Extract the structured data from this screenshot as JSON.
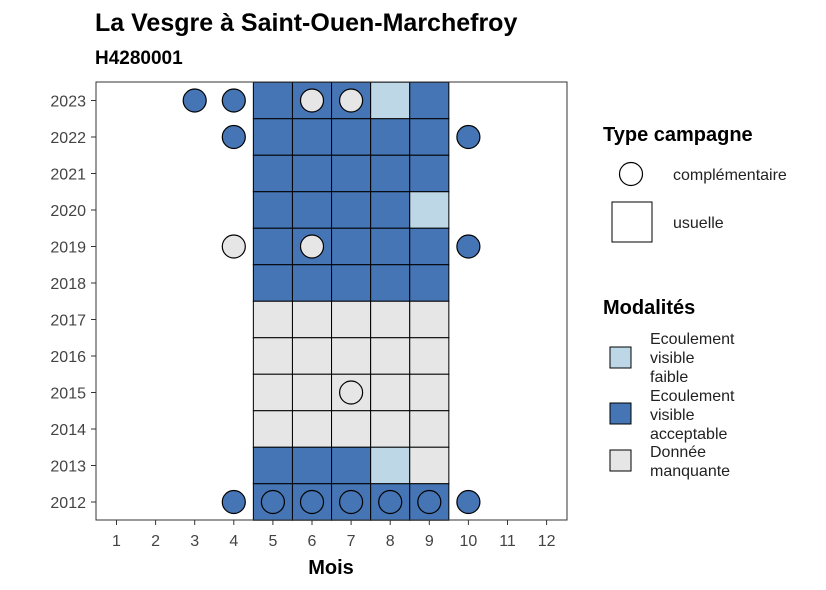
{
  "chart_data": {
    "type": "heatmap",
    "title": "La Vesgre à Saint-Ouen-Marchefroy",
    "subtitle": "H4280001",
    "xlabel": "Mois",
    "ylabel": "",
    "x_ticks": [
      "1",
      "2",
      "3",
      "4",
      "5",
      "6",
      "7",
      "8",
      "9",
      "10",
      "11",
      "12"
    ],
    "y_ticks": [
      "2012",
      "2013",
      "2014",
      "2015",
      "2016",
      "2017",
      "2018",
      "2019",
      "2020",
      "2021",
      "2022",
      "2023"
    ],
    "grid": false,
    "colors": {
      "faible": "#BDD7E7",
      "acceptable": "#4575B4",
      "manquante": "#E6E6E6"
    },
    "legend_shape": {
      "title": "Type campagne",
      "items": [
        {
          "shape": "circle",
          "label": "complémentaire"
        },
        {
          "shape": "square",
          "label": "usuelle"
        }
      ]
    },
    "legend_fill": {
      "title": "Modalités",
      "items": [
        {
          "key": "faible",
          "lines": [
            "Ecoulement",
            "visible",
            "faible"
          ]
        },
        {
          "key": "acceptable",
          "lines": [
            "Ecoulement",
            "visible",
            "acceptable"
          ]
        },
        {
          "key": "manquante",
          "lines": [
            "Donnée",
            "manquante"
          ]
        }
      ]
    },
    "usuelle": [
      {
        "year": "2023",
        "months": [
          5,
          6,
          7,
          8,
          9
        ],
        "values": [
          "acceptable",
          "acceptable",
          "acceptable",
          "faible",
          "acceptable"
        ]
      },
      {
        "year": "2022",
        "months": [
          5,
          6,
          7,
          8,
          9
        ],
        "values": [
          "acceptable",
          "acceptable",
          "acceptable",
          "acceptable",
          "acceptable"
        ]
      },
      {
        "year": "2021",
        "months": [
          5,
          6,
          7,
          8,
          9
        ],
        "values": [
          "acceptable",
          "acceptable",
          "acceptable",
          "acceptable",
          "acceptable"
        ]
      },
      {
        "year": "2020",
        "months": [
          5,
          6,
          7,
          8,
          9
        ],
        "values": [
          "acceptable",
          "acceptable",
          "acceptable",
          "acceptable",
          "faible"
        ]
      },
      {
        "year": "2019",
        "months": [
          5,
          6,
          7,
          8,
          9
        ],
        "values": [
          "acceptable",
          "acceptable",
          "acceptable",
          "acceptable",
          "acceptable"
        ]
      },
      {
        "year": "2018",
        "months": [
          5,
          6,
          7,
          8,
          9
        ],
        "values": [
          "acceptable",
          "acceptable",
          "acceptable",
          "acceptable",
          "acceptable"
        ]
      },
      {
        "year": "2017",
        "months": [
          5,
          6,
          7,
          8,
          9
        ],
        "values": [
          "manquante",
          "manquante",
          "manquante",
          "manquante",
          "manquante"
        ]
      },
      {
        "year": "2016",
        "months": [
          5,
          6,
          7,
          8,
          9
        ],
        "values": [
          "manquante",
          "manquante",
          "manquante",
          "manquante",
          "manquante"
        ]
      },
      {
        "year": "2015",
        "months": [
          5,
          6,
          7,
          8,
          9
        ],
        "values": [
          "manquante",
          "manquante",
          "manquante",
          "manquante",
          "manquante"
        ]
      },
      {
        "year": "2014",
        "months": [
          5,
          6,
          7,
          8,
          9
        ],
        "values": [
          "manquante",
          "manquante",
          "manquante",
          "manquante",
          "manquante"
        ]
      },
      {
        "year": "2013",
        "months": [
          5,
          6,
          7,
          8,
          9
        ],
        "values": [
          "acceptable",
          "acceptable",
          "acceptable",
          "faible",
          "manquante"
        ]
      },
      {
        "year": "2012",
        "months": [
          5,
          6,
          7,
          8,
          9
        ],
        "values": [
          "acceptable",
          "acceptable",
          "acceptable",
          "acceptable",
          "acceptable"
        ]
      }
    ],
    "complementaire": [
      {
        "year": "2023",
        "month": 3,
        "value": "acceptable"
      },
      {
        "year": "2023",
        "month": 4,
        "value": "acceptable"
      },
      {
        "year": "2023",
        "month": 6,
        "value": "manquante"
      },
      {
        "year": "2023",
        "month": 7,
        "value": "manquante"
      },
      {
        "year": "2022",
        "month": 4,
        "value": "acceptable"
      },
      {
        "year": "2022",
        "month": 10,
        "value": "acceptable"
      },
      {
        "year": "2019",
        "month": 4,
        "value": "manquante"
      },
      {
        "year": "2019",
        "month": 6,
        "value": "manquante"
      },
      {
        "year": "2019",
        "month": 10,
        "value": "acceptable"
      },
      {
        "year": "2015",
        "month": 7,
        "value": "manquante"
      },
      {
        "year": "2012",
        "month": 4,
        "value": "acceptable"
      },
      {
        "year": "2012",
        "month": 5,
        "value": "acceptable"
      },
      {
        "year": "2012",
        "month": 6,
        "value": "acceptable"
      },
      {
        "year": "2012",
        "month": 7,
        "value": "acceptable"
      },
      {
        "year": "2012",
        "month": 8,
        "value": "acceptable"
      },
      {
        "year": "2012",
        "month": 9,
        "value": "acceptable"
      },
      {
        "year": "2012",
        "month": 10,
        "value": "acceptable"
      }
    ]
  }
}
